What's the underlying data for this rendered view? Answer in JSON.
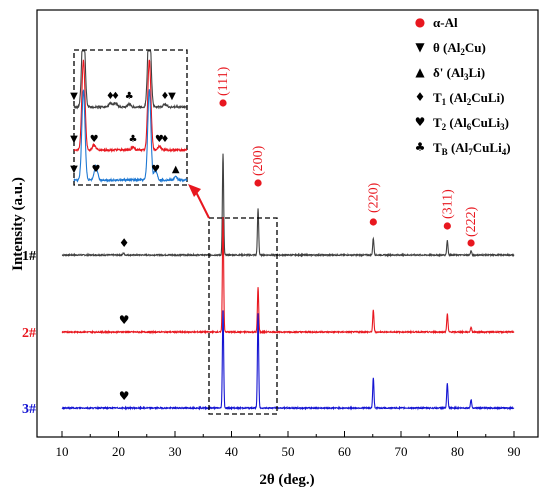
{
  "chart_data": {
    "type": "line",
    "xlabel": "2θ (deg.)",
    "ylabel": "Intensity (a.u.)",
    "xlim": [
      10,
      90
    ],
    "x_ticks": [
      "10",
      "20",
      "30",
      "40",
      "50",
      "60",
      "70",
      "80",
      "90"
    ],
    "legend": [
      {
        "symbol": "●",
        "color": "#e8171f",
        "text": "α-Al"
      },
      {
        "symbol": "▼",
        "color": "#000000",
        "text": "θ (Al",
        "sub": "2",
        "tail": "Cu)"
      },
      {
        "symbol": "▲",
        "color": "#000000",
        "text": "δ' (Al",
        "sub": "3",
        "tail": "Li)"
      },
      {
        "symbol": "♦",
        "color": "#000000",
        "text": "T",
        "sub": "1",
        "tail": " (Al",
        "sub2": "2",
        "tail2": "CuLi)"
      },
      {
        "symbol": "♥",
        "color": "#000000",
        "text": "T",
        "sub": "2",
        "tail": " (Al",
        "sub2": "6",
        "tail2": "CuLi",
        "sub3": "3",
        "tail3": ")"
      },
      {
        "symbol": "♣",
        "color": "#000000",
        "text": "T",
        "sub": "B",
        "tail": " (Al",
        "sub2": "7",
        "tail2": "CuLi",
        "sub3": "4",
        "tail3": ")"
      }
    ],
    "peak_labels": [
      {
        "label": "(111)",
        "x": 38.5
      },
      {
        "label": "(200)",
        "x": 44.7
      },
      {
        "label": "(220)",
        "x": 65.1
      },
      {
        "label": "(311)",
        "x": 78.2
      },
      {
        "label": "(222)",
        "x": 82.4
      }
    ],
    "series": [
      {
        "name": "1#",
        "color": "#404040",
        "peaks": [
          {
            "x": 20.9,
            "h": 3
          },
          {
            "x": 38.5,
            "h": 145
          },
          {
            "x": 44.7,
            "h": 66
          },
          {
            "x": 65.1,
            "h": 24
          },
          {
            "x": 78.2,
            "h": 21
          },
          {
            "x": 82.4,
            "h": 6
          }
        ],
        "markers": [
          {
            "symbol": "♦",
            "x": 21
          }
        ]
      },
      {
        "name": "2#",
        "color": "#e8171f",
        "peaks": [
          {
            "x": 38.5,
            "h": 165
          },
          {
            "x": 44.7,
            "h": 64
          },
          {
            "x": 65.1,
            "h": 31
          },
          {
            "x": 78.2,
            "h": 26
          },
          {
            "x": 82.4,
            "h": 7
          }
        ],
        "markers": [
          {
            "symbol": "♥",
            "x": 21
          }
        ]
      },
      {
        "name": "3#",
        "color": "#1414d2",
        "peaks": [
          {
            "x": 38.5,
            "h": 140
          },
          {
            "x": 44.7,
            "h": 135
          },
          {
            "x": 65.1,
            "h": 43
          },
          {
            "x": 78.2,
            "h": 35
          },
          {
            "x": 82.4,
            "h": 12
          }
        ],
        "markers": [
          {
            "symbol": "♥",
            "x": 21
          }
        ]
      }
    ],
    "inset": {
      "xlim": [
        15,
        33
      ],
      "traces": [
        {
          "color": "#404040",
          "markers": [
            "▼",
            "♦",
            "♦",
            "♣",
            "♦",
            "▼"
          ],
          "marker_x": [
            15.0,
            20.8,
            21.6,
            23.8,
            29.5,
            30.6
          ]
        },
        {
          "color": "#e8171f",
          "markers": [
            "▼",
            "♥",
            "♣",
            "♥",
            "♦"
          ],
          "marker_x": [
            15.0,
            18.2,
            24.4,
            28.6,
            29.5
          ]
        },
        {
          "color": "#1e78d2",
          "markers": [
            "▼",
            "♥",
            "♥",
            "▲"
          ],
          "marker_x": [
            15.0,
            18.5,
            28.0,
            31.2
          ]
        }
      ]
    }
  }
}
